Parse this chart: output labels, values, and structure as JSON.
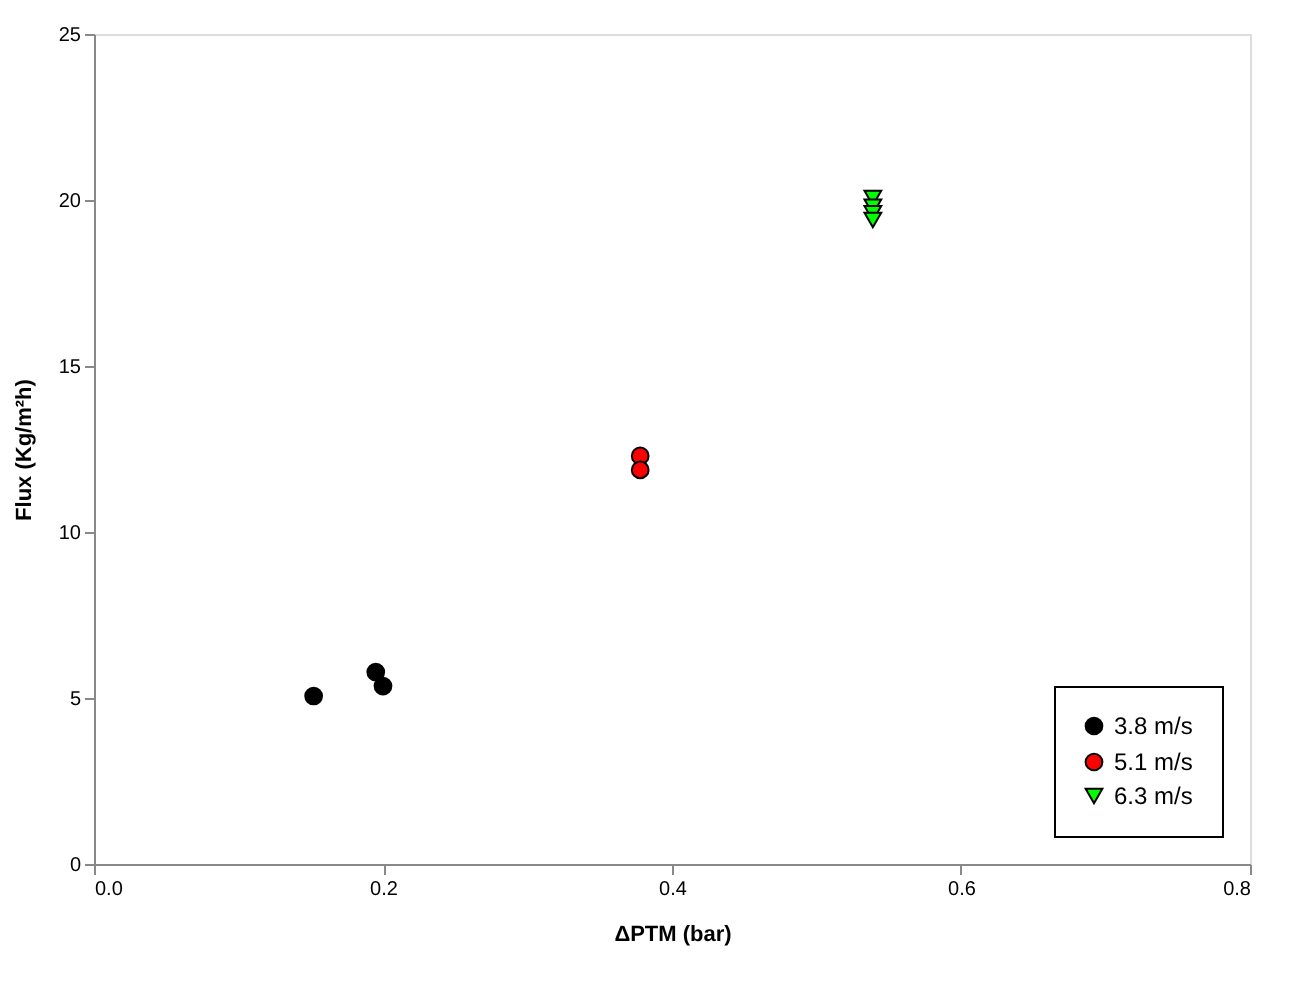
{
  "chart_data": {
    "type": "scatter",
    "xlabel": "ΔPTM (bar)",
    "ylabel": "Flux (Kg/m²h)",
    "xlim": [
      0,
      0.8
    ],
    "xticks": [
      {
        "value": 0,
        "label": "0.0"
      },
      0.2,
      0.4,
      0.6,
      0.8
    ],
    "ylim": [
      0,
      25
    ],
    "yticks": [
      0,
      5,
      10,
      15,
      20,
      25
    ],
    "grid": false,
    "legend": "bottom right",
    "series": [
      {
        "name": "3.8 m/s",
        "color": "#000000",
        "marker": "circle",
        "x": [
          0.152,
          0.195,
          0.2
        ],
        "values": [
          5.06,
          5.78,
          5.36
        ]
      },
      {
        "name": "5.1 m/s",
        "color": "#ff0000",
        "marker": "circle",
        "x": [
          0.378,
          0.378
        ],
        "values": [
          12.29,
          11.87
        ]
      },
      {
        "name": "6.3 m/s",
        "color": "#00ff00",
        "marker": "triangle",
        "x": [
          0.539,
          0.539,
          0.539,
          0.539
        ],
        "values": [
          20.06,
          19.8,
          19.6,
          19.4
        ]
      }
    ]
  }
}
